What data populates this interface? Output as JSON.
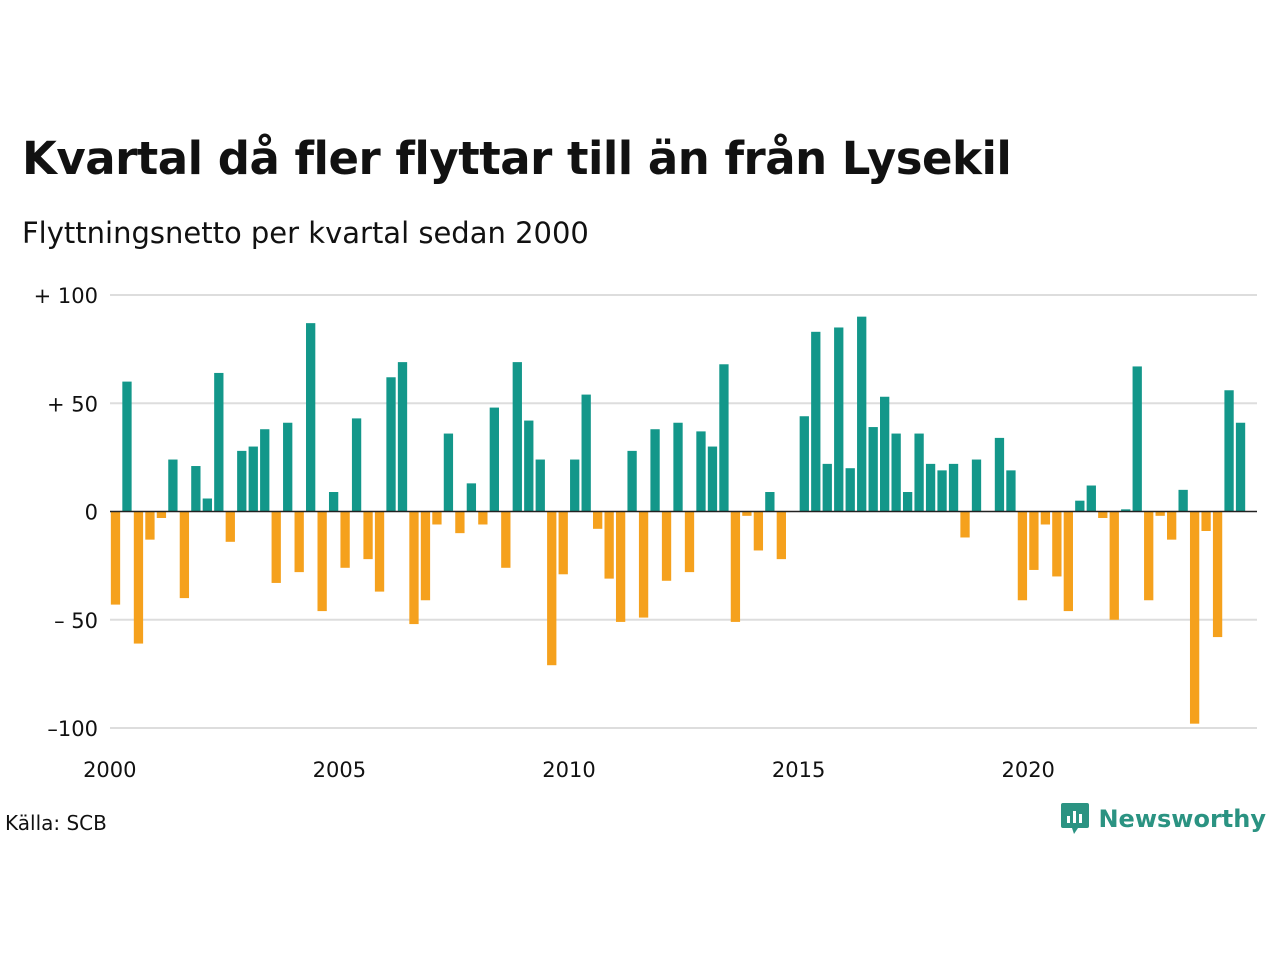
{
  "title": "Kvartal då fler flyttar till än från Lysekil",
  "subtitle": "Flyttningsnetto per kvartal sedan 2000",
  "source": "Källa: SCB",
  "brand": {
    "name": "Newsworthy",
    "icon": "newsworthy-logo-icon",
    "color": "#2b9382"
  },
  "colors": {
    "positive": "#13978a",
    "negative": "#f5a11d",
    "grid": "#dddddd",
    "baseline": "#222222"
  },
  "chart_data": {
    "type": "bar",
    "title": "Kvartal då fler flyttar till än från Lysekil",
    "subtitle": "Flyttningsnetto per kvartal sedan 2000",
    "xlabel": "",
    "ylabel": "",
    "ylim": [
      -100,
      100
    ],
    "yticks": [
      {
        "value": 100,
        "label": "+ 100"
      },
      {
        "value": 50,
        "label": "+  50"
      },
      {
        "value": 0,
        "label": "0"
      },
      {
        "value": -50,
        "label": "– 50"
      },
      {
        "value": -100,
        "label": "–100"
      }
    ],
    "xticks": [
      "2000",
      "2005",
      "2010",
      "2015",
      "2020"
    ],
    "start": "2000 Q1",
    "grid": true,
    "legend": "none",
    "values": [
      -43,
      60,
      -61,
      -13,
      -3,
      24,
      -40,
      21,
      6,
      64,
      -14,
      28,
      30,
      38,
      -33,
      41,
      -28,
      87,
      -46,
      9,
      -26,
      43,
      -22,
      -37,
      62,
      69,
      -52,
      -41,
      -6,
      36,
      -10,
      13,
      -6,
      48,
      -26,
      69,
      42,
      24,
      -71,
      -29,
      24,
      54,
      -8,
      -31,
      -51,
      28,
      -49,
      38,
      -32,
      41,
      -28,
      37,
      30,
      68,
      -51,
      -2,
      -18,
      9,
      -22,
      0,
      44,
      83,
      22,
      85,
      20,
      90,
      39,
      53,
      36,
      9,
      36,
      22,
      19,
      22,
      -12,
      24,
      0,
      34,
      19,
      -41,
      -27,
      -6,
      -30,
      -46,
      5,
      12,
      -3,
      -50,
      1,
      67,
      -41,
      -2,
      -13,
      10,
      -98,
      -9,
      -58,
      56,
      41
    ]
  }
}
